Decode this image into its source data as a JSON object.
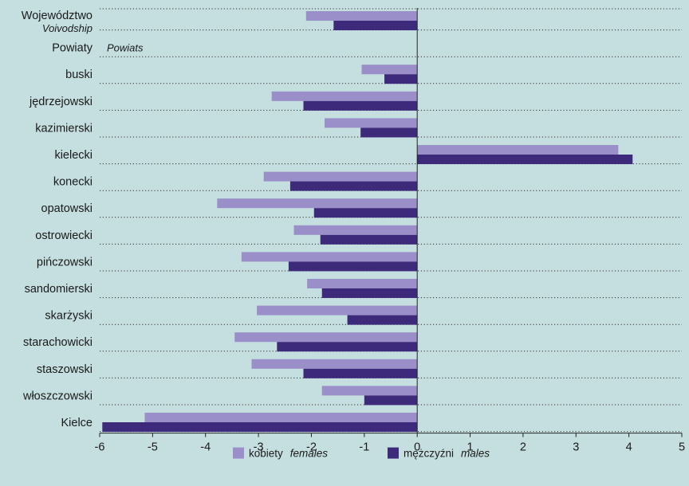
{
  "chart_data": {
    "type": "bar",
    "orientation": "horizontal",
    "categories": [
      {
        "label": "Województwo",
        "sublabel": "Voivodship",
        "has_data": true
      },
      {
        "label": "Powiaty",
        "sublabel": "Powiats",
        "has_data": false
      },
      {
        "label": "buski",
        "has_data": true
      },
      {
        "label": "jędrzejowski",
        "has_data": true
      },
      {
        "label": "kazimierski",
        "has_data": true
      },
      {
        "label": "kielecki",
        "has_data": true
      },
      {
        "label": "konecki",
        "has_data": true
      },
      {
        "label": "opatowski",
        "has_data": true
      },
      {
        "label": "ostrowiecki",
        "has_data": true
      },
      {
        "label": "pińczowski",
        "has_data": true
      },
      {
        "label": "sandomierski",
        "has_data": true
      },
      {
        "label": "skarżyski",
        "has_data": true
      },
      {
        "label": "starachowicki",
        "has_data": true
      },
      {
        "label": "staszowski",
        "has_data": true
      },
      {
        "label": "włoszczowski",
        "has_data": true
      },
      {
        "label": "Kielce",
        "has_data": true
      }
    ],
    "series": [
      {
        "name": "kobiety",
        "name_en": "females",
        "color": "#9b8fc9",
        "values": [
          -2.1,
          null,
          -1.05,
          -2.75,
          -1.75,
          3.8,
          -2.9,
          -3.78,
          -2.33,
          -3.32,
          -2.08,
          -3.03,
          -3.45,
          -3.13,
          -1.8,
          -5.15
        ]
      },
      {
        "name": "mężczyźni",
        "name_en": "males",
        "color": "#3d2a7a",
        "values": [
          -1.58,
          null,
          -0.62,
          -2.15,
          -1.07,
          4.07,
          -2.4,
          -1.95,
          -1.83,
          -2.43,
          -1.8,
          -1.32,
          -2.65,
          -2.15,
          -1.0,
          -5.95
        ]
      }
    ],
    "xlim": [
      -6,
      5
    ],
    "xticks": [
      "-6",
      "-5",
      "-4",
      "-3",
      "-2",
      "-1",
      "0",
      "1",
      "2",
      "3",
      "4",
      "5"
    ],
    "grid": "dotted separators between categories",
    "legend": "bottom-center"
  }
}
